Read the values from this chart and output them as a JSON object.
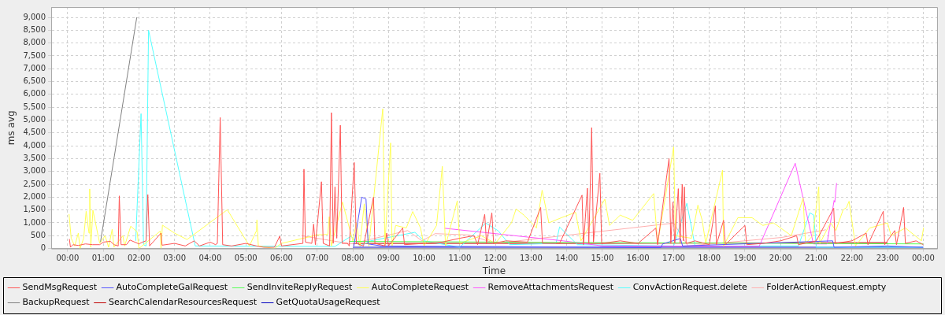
{
  "chart_data": {
    "type": "line",
    "xlabel": "Time",
    "ylabel": "ms avg",
    "xlim": [
      -0.46,
      24.39
    ],
    "ylim": [
      0,
      9400
    ],
    "xticks": [
      {
        "value": 0,
        "label": "00:00"
      },
      {
        "value": 1,
        "label": "01:00"
      },
      {
        "value": 2,
        "label": "02:00"
      },
      {
        "value": 3,
        "label": "03:00"
      },
      {
        "value": 4,
        "label": "04:00"
      },
      {
        "value": 5,
        "label": "05:00"
      },
      {
        "value": 6,
        "label": "06:00"
      },
      {
        "value": 7,
        "label": "07:00"
      },
      {
        "value": 8,
        "label": "08:00"
      },
      {
        "value": 9,
        "label": "09:00"
      },
      {
        "value": 10,
        "label": "10:00"
      },
      {
        "value": 11,
        "label": "11:00"
      },
      {
        "value": 12,
        "label": "12:00"
      },
      {
        "value": 13,
        "label": "13:00"
      },
      {
        "value": 14,
        "label": "14:00"
      },
      {
        "value": 15,
        "label": "15:00"
      },
      {
        "value": 16,
        "label": "16:00"
      },
      {
        "value": 17,
        "label": "17:00"
      },
      {
        "value": 18,
        "label": "18:00"
      },
      {
        "value": 19,
        "label": "19:00"
      },
      {
        "value": 20,
        "label": "20:00"
      },
      {
        "value": 21,
        "label": "21:00"
      },
      {
        "value": 22,
        "label": "22:00"
      },
      {
        "value": 23,
        "label": "23:00"
      },
      {
        "value": 24,
        "label": "00:00"
      }
    ],
    "yticks": [
      0,
      500,
      {
        "value": 1000,
        "label": "1,000"
      },
      {
        "value": 1500,
        "label": "1,500"
      },
      {
        "value": 2000,
        "label": "2,000"
      },
      {
        "value": 2500,
        "label": "2,500"
      },
      {
        "value": 3000,
        "label": "3,000"
      },
      {
        "value": 3500,
        "label": "3,500"
      },
      {
        "value": 4000,
        "label": "4,000"
      },
      {
        "value": 4500,
        "label": "4,500"
      },
      {
        "value": 5000,
        "label": "5,000"
      },
      {
        "value": 5500,
        "label": "5,500"
      },
      {
        "value": 6000,
        "label": "6,000"
      },
      {
        "value": 6500,
        "label": "6,500"
      },
      {
        "value": 7000,
        "label": "7,000"
      },
      {
        "value": 7500,
        "label": "7,500"
      },
      {
        "value": 8000,
        "label": "8,000"
      },
      {
        "value": 8500,
        "label": "8,500"
      },
      {
        "value": 9000,
        "label": "9,000"
      }
    ],
    "grid": true,
    "legend": "bottom",
    "marker": "none",
    "line_style": "solid",
    "series": [
      {
        "name": "SendMsgRequest",
        "color": "#ff5555",
        "x": [
          0.05,
          0.08,
          0.15,
          0.3,
          0.5,
          0.7,
          0.9,
          1.0,
          1.2,
          1.3,
          1.42,
          1.45,
          1.5,
          1.65,
          1.75,
          2.0,
          2.1,
          2.2,
          2.25,
          2.3,
          2.62,
          2.65,
          3.0,
          3.3,
          3.55,
          3.7,
          4.0,
          4.15,
          4.2,
          4.28,
          4.35,
          4.6,
          5.0,
          5.3,
          5.5,
          5.8,
          5.95,
          6.0,
          6.6,
          6.63,
          6.67,
          6.85,
          6.9,
          6.95,
          7.12,
          7.17,
          7.35,
          7.4,
          7.45,
          7.5,
          7.55,
          7.65,
          7.7,
          7.85,
          7.9,
          8.04,
          8.1,
          8.3,
          8.58,
          8.62,
          8.9,
          8.95,
          9.0,
          9.4,
          9.45,
          10.0,
          10.5,
          11.0,
          11.4,
          11.5,
          11.7,
          11.75,
          11.9,
          11.95,
          12.3,
          12.9,
          13.27,
          13.32,
          13.8,
          14.43,
          14.47,
          14.58,
          14.62,
          14.7,
          14.75,
          14.93,
          14.98,
          15.5,
          16.0,
          16.5,
          16.55,
          16.87,
          16.92,
          16.98,
          17.03,
          17.13,
          17.18,
          17.24,
          17.27,
          17.3,
          17.35,
          17.6,
          18.0,
          18.17,
          18.2,
          18.4,
          18.45,
          19.0,
          19.05,
          19.5,
          20.0,
          20.45,
          20.5,
          21.0,
          21.49,
          21.53,
          22.0,
          22.4,
          22.45,
          22.88,
          22.92,
          23.2,
          23.25,
          23.45,
          23.5,
          23.8,
          24.0
        ],
        "values": [
          370,
          50,
          150,
          120,
          180,
          150,
          150,
          250,
          280,
          150,
          100,
          2050,
          150,
          150,
          330,
          180,
          250,
          300,
          2100,
          100,
          600,
          130,
          200,
          100,
          300,
          100,
          250,
          150,
          200,
          5100,
          150,
          100,
          200,
          100,
          50,
          50,
          480,
          100,
          200,
          3090,
          250,
          200,
          950,
          150,
          2600,
          200,
          100,
          5290,
          200,
          2400,
          400,
          4800,
          200,
          200,
          100,
          3350,
          200,
          100,
          2000,
          200,
          100,
          600,
          100,
          800,
          150,
          200,
          250,
          400,
          500,
          150,
          1330,
          200,
          1390,
          200,
          300,
          250,
          1600,
          200,
          200,
          2080,
          150,
          2350,
          200,
          4710,
          250,
          2930,
          200,
          300,
          200,
          800,
          150,
          3500,
          200,
          1810,
          200,
          2330,
          200,
          2500,
          300,
          2400,
          200,
          300,
          150,
          1660,
          150,
          1100,
          150,
          900,
          150,
          200,
          300,
          500,
          150,
          300,
          1570,
          200,
          300,
          600,
          150,
          1450,
          150,
          700,
          150,
          1600,
          200,
          300,
          150
        ]
      },
      {
        "name": "AutoCompleteGalRequest",
        "color": "#5555ff",
        "x": [
          8.03,
          8.25,
          8.37,
          8.43,
          8.8,
          15.0,
          16.64,
          16.69,
          17.19,
          17.25,
          21.46,
          21.5,
          23.0,
          24.0
        ],
        "values": [
          90,
          2000,
          1930,
          180,
          100,
          50,
          30,
          180,
          390,
          100,
          300,
          50,
          100,
          50
        ]
      },
      {
        "name": "SendInviteReplyRequest",
        "color": "#55ff55",
        "x": [
          7.9,
          15.0,
          24.0
        ],
        "values": [
          280,
          230,
          180
        ]
      },
      {
        "name": "AutoCompleteRequest",
        "color": "#ffff55",
        "x": [
          0.04,
          0.1,
          0.2,
          0.3,
          0.35,
          0.45,
          0.52,
          0.6,
          0.62,
          0.65,
          0.71,
          0.9,
          1.05,
          1.15,
          1.25,
          1.3,
          1.55,
          1.6,
          1.77,
          1.95,
          2.0,
          2.6,
          2.62,
          2.66,
          3.0,
          3.35,
          4.48,
          5.1,
          5.3,
          5.31,
          5.35,
          5.8,
          6.0,
          7.0,
          7.3,
          7.34,
          7.4,
          7.71,
          8.0,
          8.1,
          8.2,
          8.32,
          8.45,
          8.84,
          8.9,
          9.06,
          9.1,
          9.2,
          9.5,
          9.68,
          9.9,
          10.0,
          10.35,
          10.51,
          10.6,
          10.93,
          11.0,
          11.6,
          12.0,
          12.45,
          12.58,
          12.8,
          13.15,
          13.31,
          13.5,
          13.85,
          14.25,
          14.4,
          15.07,
          15.2,
          15.5,
          15.85,
          16.44,
          16.55,
          17.0,
          17.05,
          17.5,
          17.68,
          17.8,
          17.9,
          18.37,
          18.4,
          18.8,
          19.2,
          19.5,
          19.8,
          20.3,
          20.63,
          20.7,
          20.9,
          21.07,
          21.1,
          21.4,
          21.55,
          21.75,
          21.85,
          21.92,
          22.1,
          22.5,
          23.0,
          23.1,
          23.5,
          23.95,
          24.01
        ],
        "values": [
          1340,
          400,
          100,
          600,
          0,
          400,
          1450,
          600,
          2320,
          50,
          1490,
          200,
          500,
          50,
          750,
          50,
          500,
          100,
          870,
          650,
          0,
          680,
          0,
          910,
          600,
          350,
          1510,
          100,
          700,
          1110,
          100,
          0,
          200,
          530,
          550,
          1240,
          100,
          1810,
          300,
          1000,
          100,
          1740,
          100,
          5440,
          100,
          4110,
          100,
          900,
          800,
          1440,
          800,
          100,
          900,
          3200,
          100,
          1860,
          200,
          500,
          200,
          1000,
          1540,
          1300,
          800,
          2270,
          1000,
          1200,
          1410,
          300,
          1920,
          900,
          1300,
          1100,
          2140,
          200,
          3960,
          500,
          400,
          1690,
          1100,
          200,
          3050,
          100,
          1200,
          1200,
          900,
          1000,
          500,
          1970,
          200,
          500,
          2400,
          200,
          1000,
          700,
          1500,
          1600,
          1840,
          100,
          800,
          1000,
          500,
          800,
          300,
          810
        ]
      },
      {
        "name": "RemoveAttachmentsRequest",
        "color": "#ff55ff",
        "x": [
          10.57,
          13.9,
          15.0,
          19.4,
          20.41,
          20.92,
          21.3,
          21.5,
          21.52,
          21.57
        ],
        "values": [
          790,
          300,
          100,
          90,
          3320,
          180,
          180,
          1870,
          1800,
          2550
        ]
      },
      {
        "name": "ConvActionRequest.delete",
        "color": "#55ffff",
        "x": [
          1.91,
          2.06,
          2.13,
          2.2,
          2.27,
          3.58,
          7.5,
          7.95,
          8.2,
          8.5,
          9.74,
          10.0,
          11.0,
          11.73,
          12.08,
          12.4,
          13.7,
          13.8,
          14.3,
          17.0,
          17.37,
          17.6,
          20.5,
          20.82,
          20.93,
          21.0,
          24.0
        ],
        "values": [
          300,
          5250,
          150,
          100,
          8500,
          100,
          80,
          480,
          100,
          300,
          630,
          300,
          50,
          990,
          690,
          150,
          200,
          840,
          150,
          100,
          1760,
          100,
          100,
          1390,
          1300,
          50,
          50
        ]
      },
      {
        "name": "FolderActionRequest.empty",
        "color": "#ffafaf",
        "x": [
          6.56,
          7.95,
          9.54,
          9.94,
          10.31,
          11.26,
          12.0,
          17.0,
          17.4,
          20.02,
          21.27
        ],
        "values": [
          500,
          180,
          700,
          300,
          580,
          530,
          200,
          990,
          100,
          430,
          730
        ]
      },
      {
        "name": "BackupRequest",
        "color": "#808080",
        "x": [
          0.92,
          1.94
        ],
        "values": [
          240,
          9000
        ]
      },
      {
        "name": "SearchCalendarResourcesRequest",
        "color": "#c00000",
        "x": [
          8.0,
          14.5,
          23.0
        ],
        "values": [
          200,
          200,
          230
        ]
      },
      {
        "name": "GetQuotaUsageRequest",
        "color": "#0000c0",
        "x": [
          8.0,
          24.0
        ],
        "values": [
          50,
          50
        ]
      }
    ]
  }
}
